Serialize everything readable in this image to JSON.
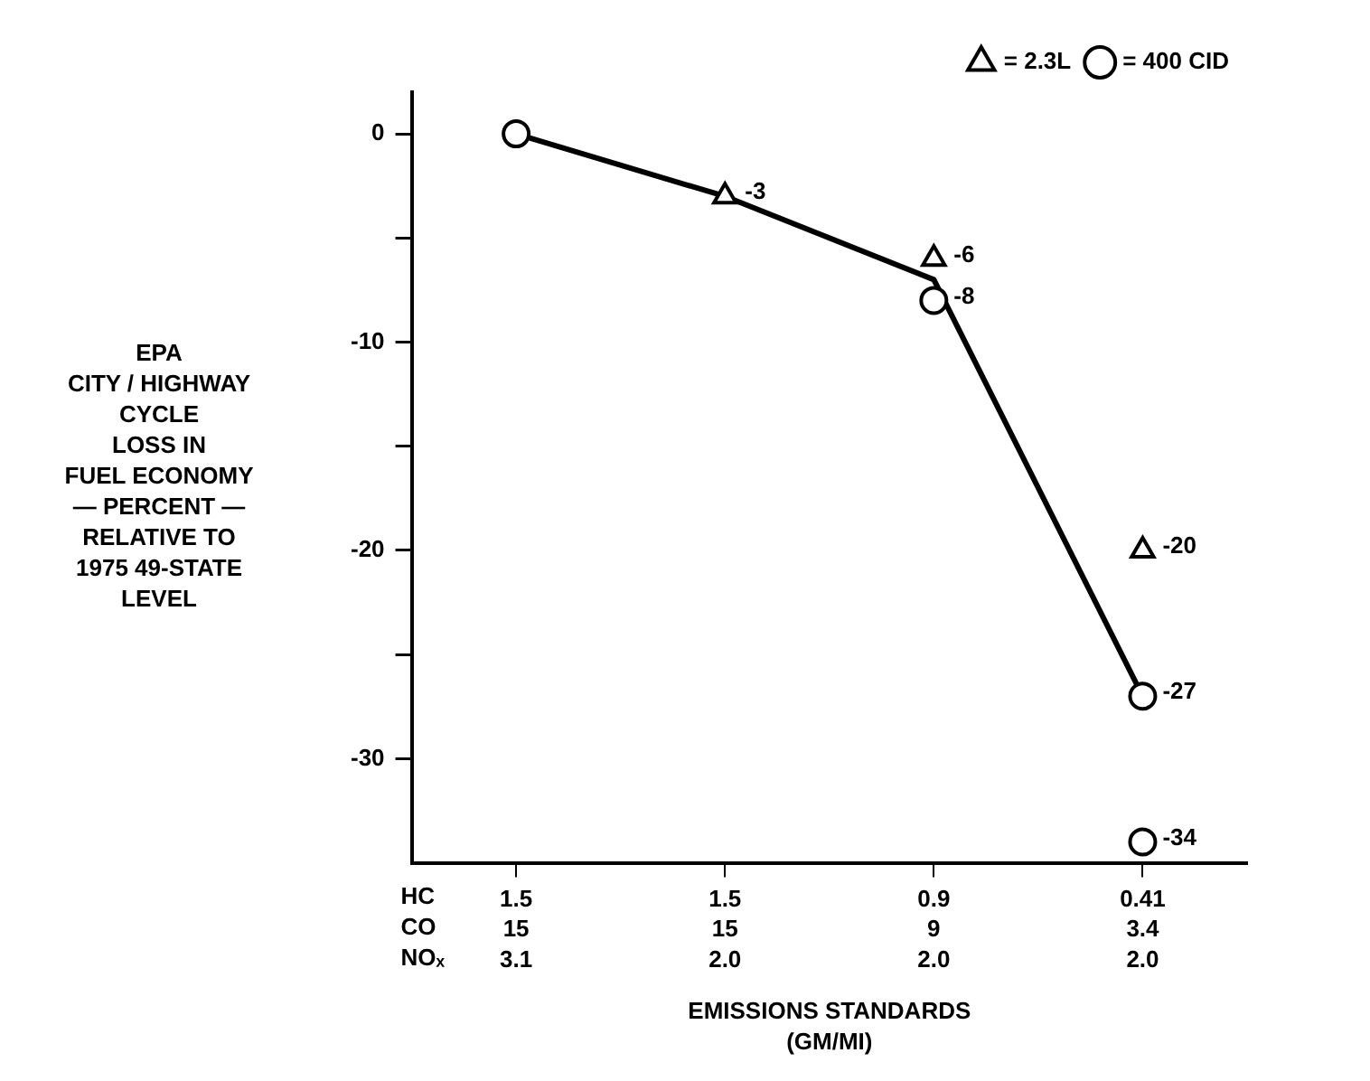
{
  "chart_data": {
    "type": "line",
    "ylabel": "EPA\nCITY / HIGHWAY\nCYCLE\nLOSS IN\nFUEL ECONOMY\n— PERCENT —\nRELATIVE TO\n1975 49-STATE\nLEVEL",
    "xlabel": "EMISSIONS STANDARDS\n(GM/MI)",
    "categories": [
      "1.5\n15\n3.1",
      "1.5\n15\n2.0",
      "0.9\n9\n2.0",
      "0.41\n3.4\n2.0"
    ],
    "annotations": [
      "HC\nCO\nNOₓ"
    ],
    "series": [
      {
        "type": "line",
        "color": "#000000",
        "marker": "none",
        "values": [
          0,
          -3,
          -7,
          -27
        ]
      },
      {
        "type": "scatter",
        "name": "= 2.3L",
        "color": "#000000",
        "marker": "triangle",
        "x": [
          "1.5\n15\n2.0",
          "0.9\n9\n2.0",
          "0.41\n3.4\n2.0"
        ],
        "values": [
          -3,
          -6,
          -20
        ],
        "value_labels": [
          "-3",
          "-6",
          "-20"
        ]
      },
      {
        "type": "scatter",
        "name": "= 400 CID",
        "color": "#000000",
        "marker": "circle",
        "x": [
          "1.5\n15\n3.1",
          "0.9\n9\n2.0",
          "0.41\n3.4\n2.0",
          "0.41\n3.4\n2.0"
        ],
        "values": [
          0,
          -8,
          -27,
          -34
        ],
        "value_labels": [
          null,
          "-8",
          "-27",
          "-34"
        ]
      }
    ],
    "ylim": [
      -35,
      2
    ],
    "yticks": [
      0,
      {
        "value": -5,
        "label": null
      },
      -10,
      {
        "value": -15,
        "label": null
      },
      -20,
      {
        "value": -25,
        "label": null
      },
      -30
    ],
    "grid": false,
    "legend": "top right"
  }
}
